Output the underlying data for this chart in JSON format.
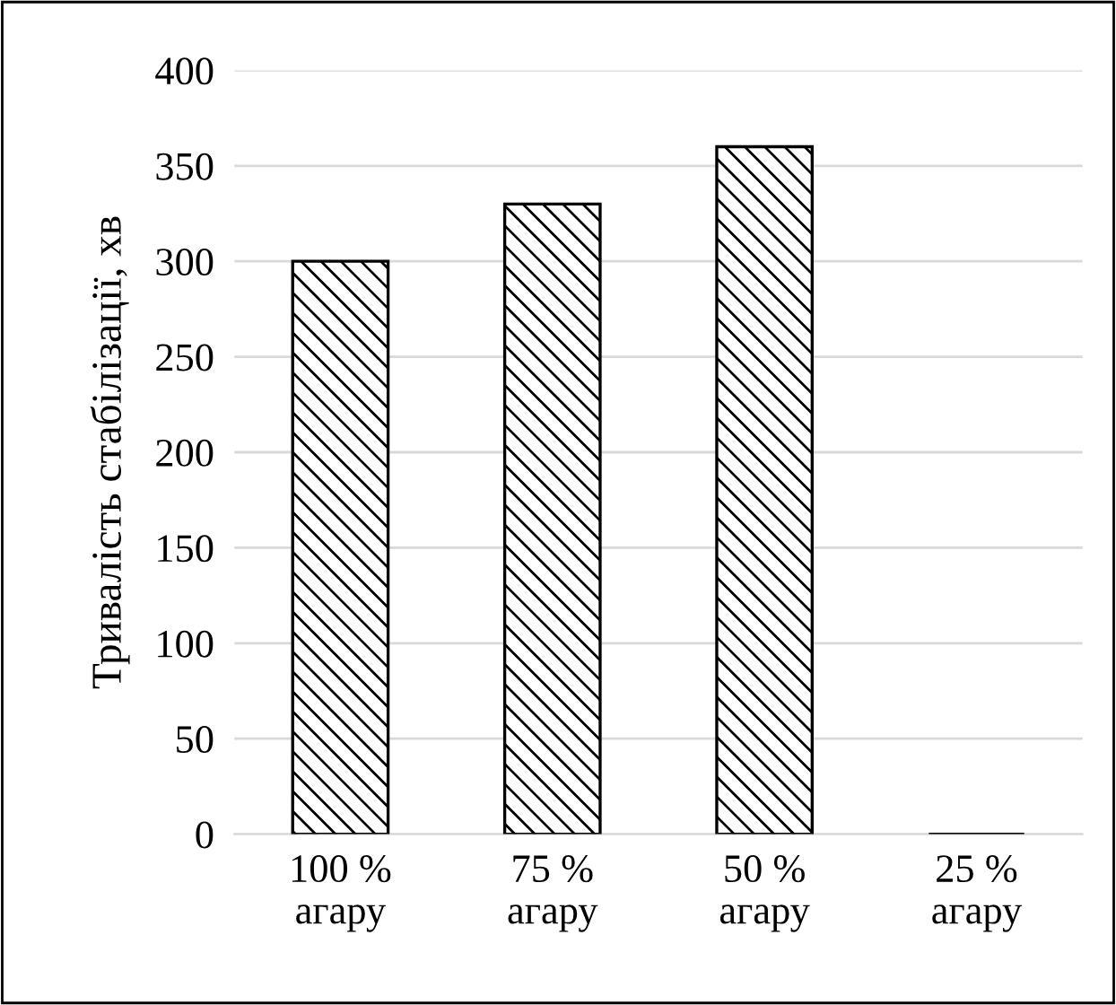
{
  "chart_data": {
    "type": "bar",
    "ylabel": "Тривалість стабілізації, хв",
    "categories": [
      "100 %\nагару",
      "75 %\nагару",
      "50 %\nагару",
      "25 %\nагару"
    ],
    "values": [
      300,
      330,
      360,
      0
    ],
    "color": "#000000",
    "ylim": [
      0,
      400
    ],
    "yticks": [
      0,
      50,
      100,
      150,
      200,
      250,
      300,
      350,
      400
    ],
    "grid": "y",
    "legend": false
  }
}
